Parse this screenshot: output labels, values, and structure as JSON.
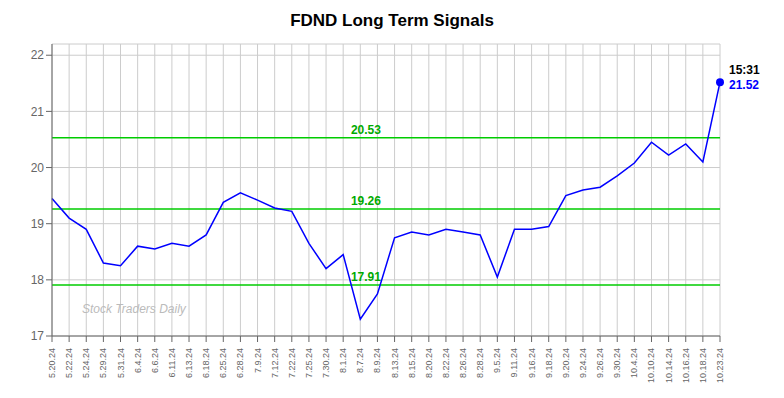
{
  "chart_data": {
    "type": "line",
    "title": "FDND Long Term Signals",
    "categories": [
      "5.20.24",
      "5.22.24",
      "5.24.24",
      "5.29.24",
      "5.31.24",
      "6.4.24",
      "6.6.24",
      "6.11.24",
      "6.13.24",
      "6.18.24",
      "6.25.24",
      "6.28.24",
      "7.9.24",
      "7.12.24",
      "7.22.24",
      "7.25.24",
      "7.30.24",
      "8.1.24",
      "8.7.24",
      "8.9.24",
      "8.13.24",
      "8.15.24",
      "8.20.24",
      "8.22.24",
      "8.26.24",
      "8.28.24",
      "9.5.24",
      "9.11.24",
      "9.16.24",
      "9.18.24",
      "9.20.24",
      "9.24.24",
      "9.26.24",
      "9.30.24",
      "10.4.24",
      "10.10.24",
      "10.14.24",
      "10.16.24",
      "10.18.24",
      "10.23.24"
    ],
    "values": [
      19.45,
      19.1,
      18.9,
      18.3,
      18.25,
      18.6,
      18.55,
      18.65,
      18.6,
      18.8,
      19.38,
      19.55,
      19.42,
      19.28,
      19.22,
      18.65,
      18.2,
      18.45,
      17.3,
      17.75,
      18.75,
      18.85,
      18.8,
      18.9,
      18.85,
      18.8,
      18.05,
      18.9,
      18.9,
      18.95,
      19.5,
      19.6,
      19.65,
      19.85,
      20.08,
      20.45,
      20.22,
      20.42,
      20.1,
      21.52
    ],
    "color": "#0000FF",
    "ylim": [
      17.0,
      22.2
    ],
    "yticks": [
      17,
      18,
      19,
      20,
      21,
      22
    ],
    "grid": true,
    "reference_lines": [
      {
        "y": 20.53,
        "label": "20.53",
        "color": "#00CC00"
      },
      {
        "y": 19.26,
        "label": "19.26",
        "color": "#00CC00"
      },
      {
        "y": 17.91,
        "label": "17.91",
        "color": "#00CC00"
      }
    ],
    "annotations": [
      {
        "x": "10.23.24",
        "y": 21.52,
        "marker": "circle",
        "color": "#0000FF",
        "texts": [
          {
            "text": "15:31",
            "color": "#000000"
          },
          {
            "text": "21.52",
            "color": "#0000FF"
          }
        ]
      }
    ],
    "watermark": "Stock Traders Daily"
  }
}
